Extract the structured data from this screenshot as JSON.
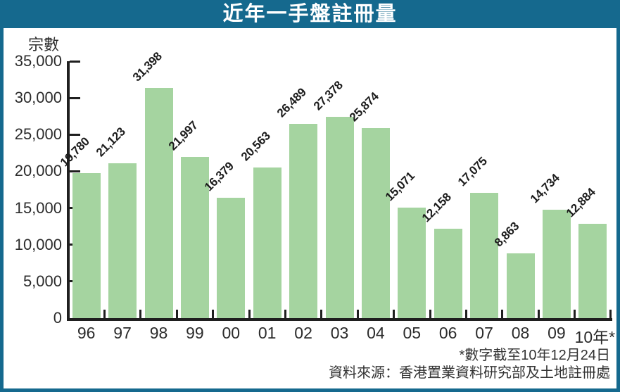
{
  "header": {
    "title": "近年一手盤註冊量"
  },
  "footer": {
    "footnote": "*數字截至10年12月24日",
    "source": "資料來源：香港置業資料研究部及土地註冊處"
  },
  "colors": {
    "frame_teal": "#15698e",
    "bar_green": "#a5d4a0",
    "axis_black": "#1f1f1f",
    "label_text": "#2b2b2b",
    "title_text": "#ffffff"
  },
  "chart_data": {
    "type": "bar",
    "title": "近年一手盤註冊量",
    "xlabel": "",
    "ylabel": "宗數",
    "categories": [
      "96",
      "97",
      "98",
      "99",
      "00",
      "01",
      "02",
      "03",
      "04",
      "05",
      "06",
      "07",
      "08",
      "09",
      "10年*"
    ],
    "values": [
      19780,
      21123,
      31398,
      21997,
      16379,
      20563,
      26489,
      27378,
      25874,
      15071,
      12158,
      17075,
      8863,
      14734,
      12884
    ],
    "bar_labels": [
      "19,780",
      "21,123",
      "31,398",
      "21,997",
      "16,379",
      "20,563",
      "26,489",
      "27,378",
      "25,874",
      "15,071",
      "12,158",
      "17,075",
      "8,863",
      "14,734",
      "12,884"
    ],
    "ylim": [
      0,
      35000
    ],
    "ytick_interval": 5000,
    "ytick_labels": [
      "0",
      "5,000",
      "10,000",
      "15,000",
      "20,000",
      "25,000",
      "30,000",
      "35,000"
    ],
    "bar_label_rotation_deg": -45,
    "grid": false,
    "legend": null
  }
}
